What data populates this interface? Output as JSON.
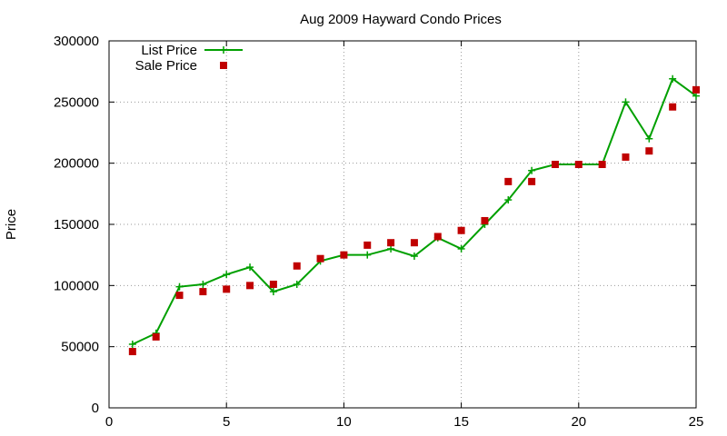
{
  "chart_data": {
    "type": "line",
    "title": "Aug 2009 Hayward Condo Prices",
    "xlabel": "",
    "ylabel": "Price",
    "xlim": [
      0,
      25
    ],
    "ylim": [
      0,
      300000
    ],
    "xticks": [
      "0",
      "5",
      "10",
      "15",
      "20",
      "25"
    ],
    "yticks": [
      "0",
      "50000",
      "100000",
      "150000",
      "200000",
      "250000",
      "300000"
    ],
    "grid": true,
    "legend_position": "top-left",
    "series": [
      {
        "name": "List Price",
        "style": "line-points",
        "marker": "plus",
        "color": "#00a000",
        "x": [
          1,
          2,
          3,
          4,
          5,
          6,
          7,
          8,
          9,
          10,
          11,
          12,
          13,
          14,
          15,
          16,
          17,
          18,
          19,
          20,
          21,
          22,
          23,
          24,
          25
        ],
        "y": [
          52000,
          61000,
          99000,
          101000,
          109000,
          115000,
          95000,
          101000,
          120000,
          125000,
          125000,
          130000,
          124000,
          139000,
          130000,
          150000,
          170000,
          194000,
          199000,
          199000,
          199000,
          250000,
          220000,
          269000,
          255000
        ]
      },
      {
        "name": "Sale Price",
        "style": "points",
        "marker": "square",
        "color": "#c00000",
        "x": [
          1,
          2,
          3,
          4,
          5,
          6,
          7,
          8,
          9,
          10,
          11,
          12,
          13,
          14,
          15,
          16,
          17,
          18,
          19,
          20,
          21,
          22,
          23,
          24,
          25
        ],
        "y": [
          46000,
          58000,
          92000,
          95000,
          97000,
          100000,
          101000,
          116000,
          122000,
          125000,
          133000,
          135000,
          135000,
          140000,
          145000,
          153000,
          185000,
          185000,
          199000,
          199000,
          199000,
          205000,
          210000,
          246000,
          260000
        ]
      }
    ]
  }
}
